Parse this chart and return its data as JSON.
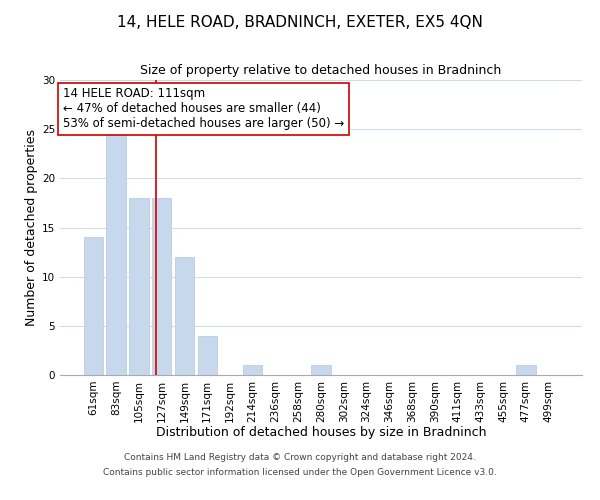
{
  "title": "14, HELE ROAD, BRADNINCH, EXETER, EX5 4QN",
  "subtitle": "Size of property relative to detached houses in Bradninch",
  "xlabel": "Distribution of detached houses by size in Bradninch",
  "ylabel": "Number of detached properties",
  "bar_labels": [
    "61sqm",
    "83sqm",
    "105sqm",
    "127sqm",
    "149sqm",
    "171sqm",
    "192sqm",
    "214sqm",
    "236sqm",
    "258sqm",
    "280sqm",
    "302sqm",
    "324sqm",
    "346sqm",
    "368sqm",
    "390sqm",
    "411sqm",
    "433sqm",
    "455sqm",
    "477sqm",
    "499sqm"
  ],
  "bar_values": [
    14,
    25,
    18,
    18,
    12,
    4,
    0,
    1,
    0,
    0,
    1,
    0,
    0,
    0,
    0,
    0,
    0,
    0,
    0,
    1,
    0
  ],
  "bar_color": "#c8d8ec",
  "bar_edge_color": "#b0c8e0",
  "ylim": [
    0,
    30
  ],
  "yticks": [
    0,
    5,
    10,
    15,
    20,
    25,
    30
  ],
  "red_line_x": 2.73,
  "red_line_color": "#cc0000",
  "annotation_title": "14 HELE ROAD: 111sqm",
  "annotation_line1": "← 47% of detached houses are smaller (44)",
  "annotation_line2": "53% of semi-detached houses are larger (50) →",
  "annotation_box_color": "#ffffff",
  "annotation_box_edge": "#cc0000",
  "footer_line1": "Contains HM Land Registry data © Crown copyright and database right 2024.",
  "footer_line2": "Contains public sector information licensed under the Open Government Licence v3.0.",
  "background_color": "#ffffff",
  "grid_color": "#ccdaec",
  "title_fontsize": 11,
  "subtitle_fontsize": 9,
  "xlabel_fontsize": 9,
  "ylabel_fontsize": 9,
  "tick_fontsize": 7.5,
  "footer_fontsize": 6.5,
  "annotation_fontsize": 8.5
}
